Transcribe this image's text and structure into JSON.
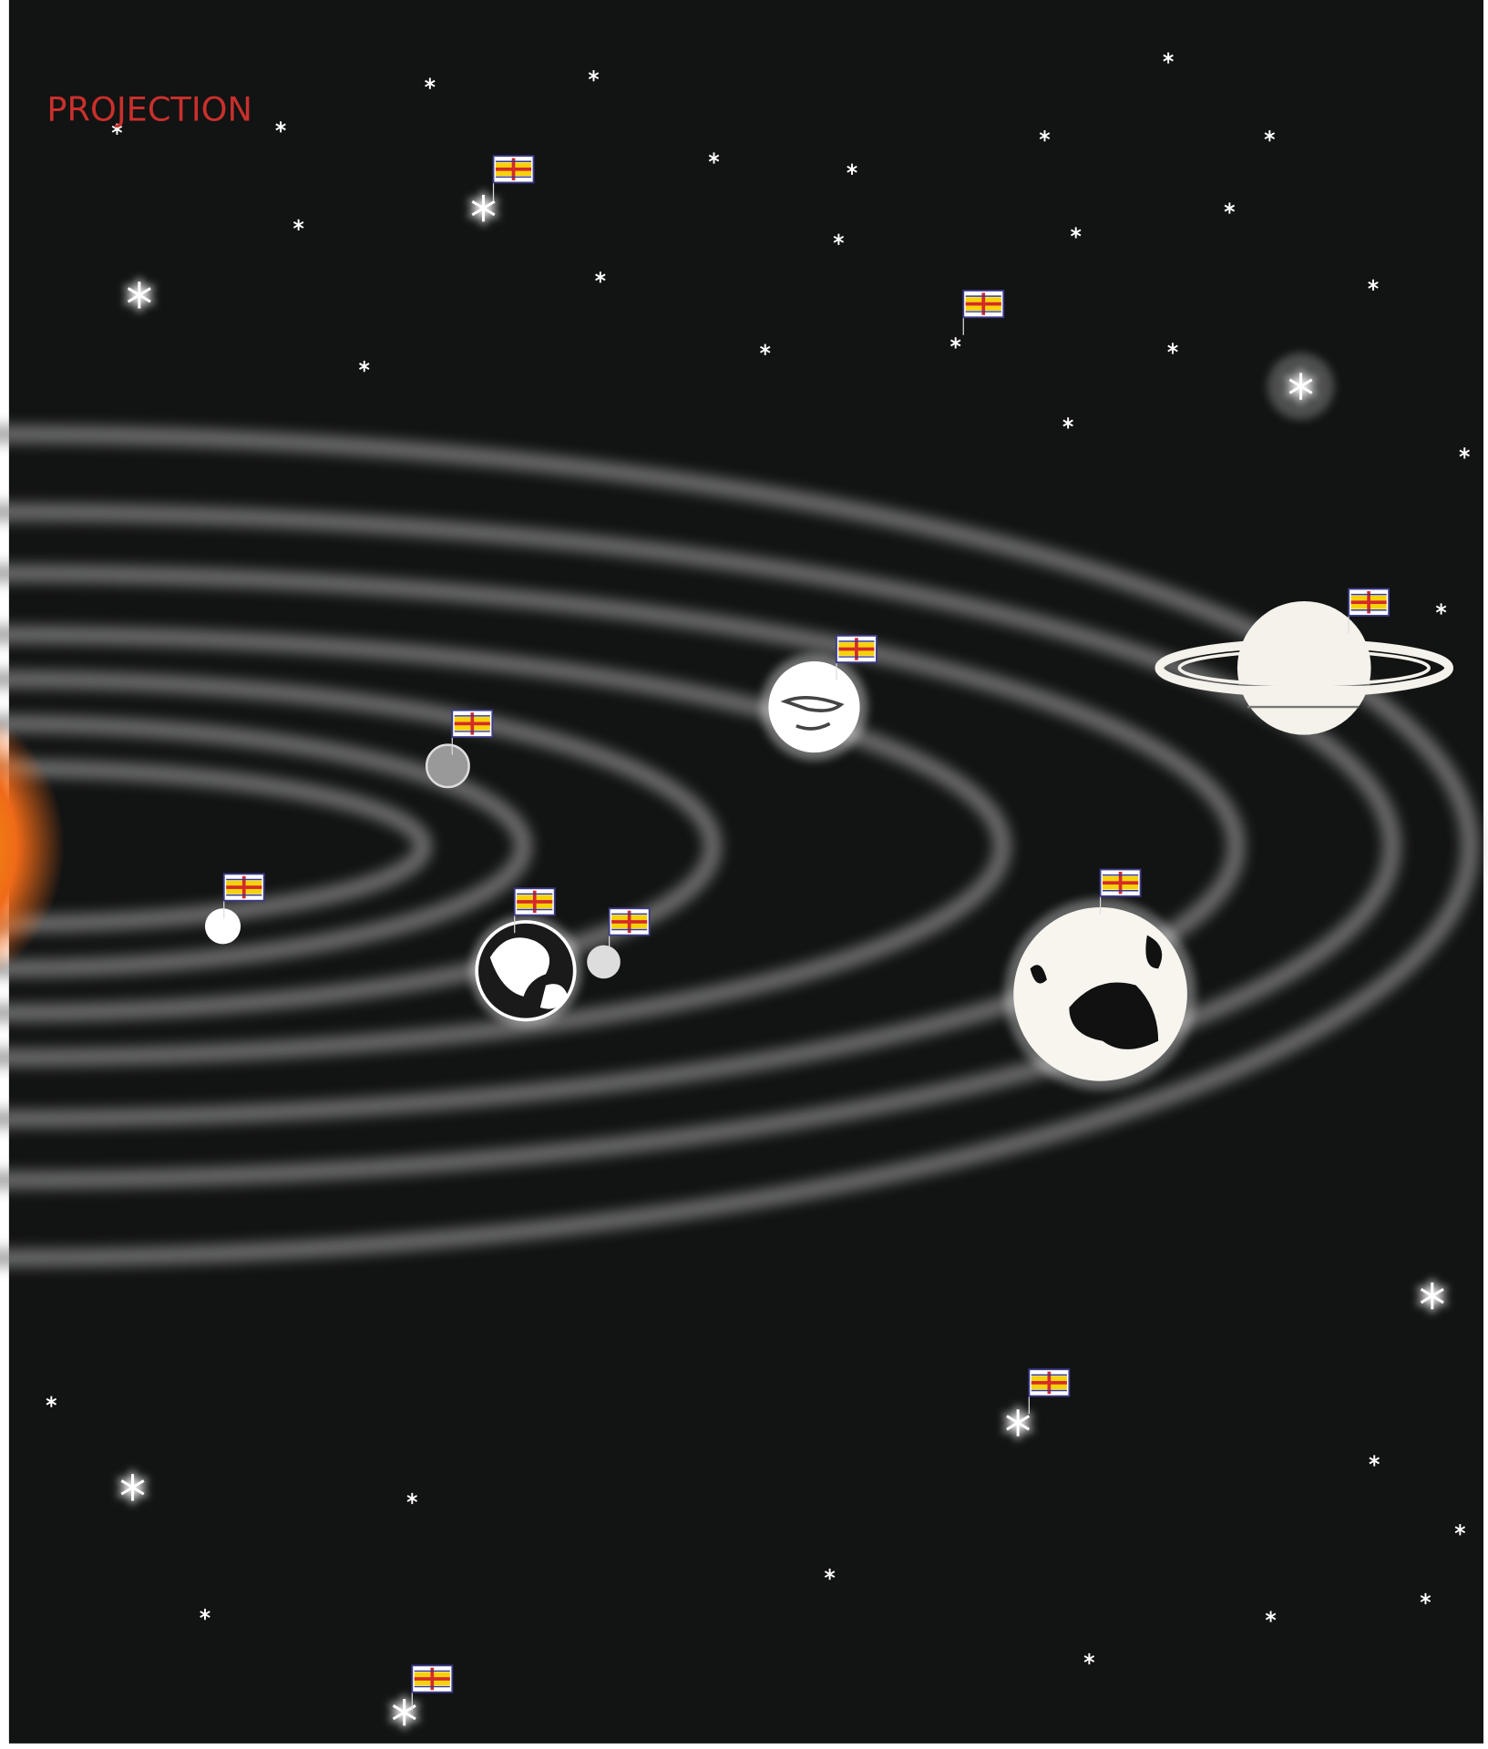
{
  "title": "PROJECTION"
}
